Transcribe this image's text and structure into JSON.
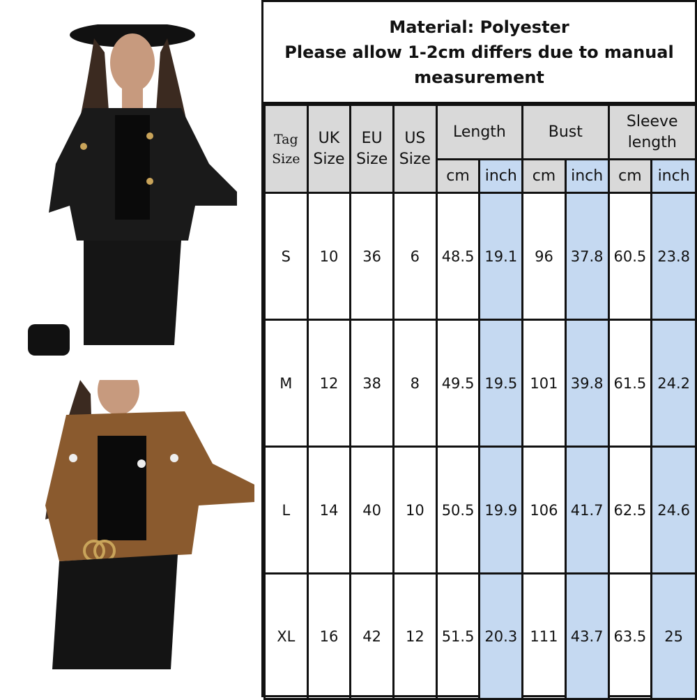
{
  "title": {
    "line1": "Material: Polyester",
    "line2": "Please allow 1-2cm differs due to manual",
    "line3": "measurement"
  },
  "headers": {
    "tag": "Tag Size",
    "uk": "UK Size",
    "eu": "EU Size",
    "us": "US Size",
    "length": "Length",
    "bust": "Bust",
    "sleeve": "Sleeve length",
    "cm": "cm",
    "inch": "inch"
  },
  "rows": [
    [
      "S",
      "10",
      "36",
      "6",
      "48.5",
      "19.1",
      "96",
      "37.8",
      "60.5",
      "23.8"
    ],
    [
      "M",
      "12",
      "38",
      "8",
      "49.5",
      "19.5",
      "101",
      "39.8",
      "61.5",
      "24.2"
    ],
    [
      "L",
      "14",
      "40",
      "10",
      "50.5",
      "19.9",
      "106",
      "41.7",
      "62.5",
      "24.6"
    ],
    [
      "XL",
      "16",
      "42",
      "12",
      "51.5",
      "20.3",
      "111",
      "43.7",
      "63.5",
      "25"
    ]
  ],
  "colors": {
    "header": "#d9d9d9",
    "inch_column": "#c5d9f1",
    "black_jacket": "#1a1a1a",
    "brown_jacket": "#8a5a2e"
  }
}
